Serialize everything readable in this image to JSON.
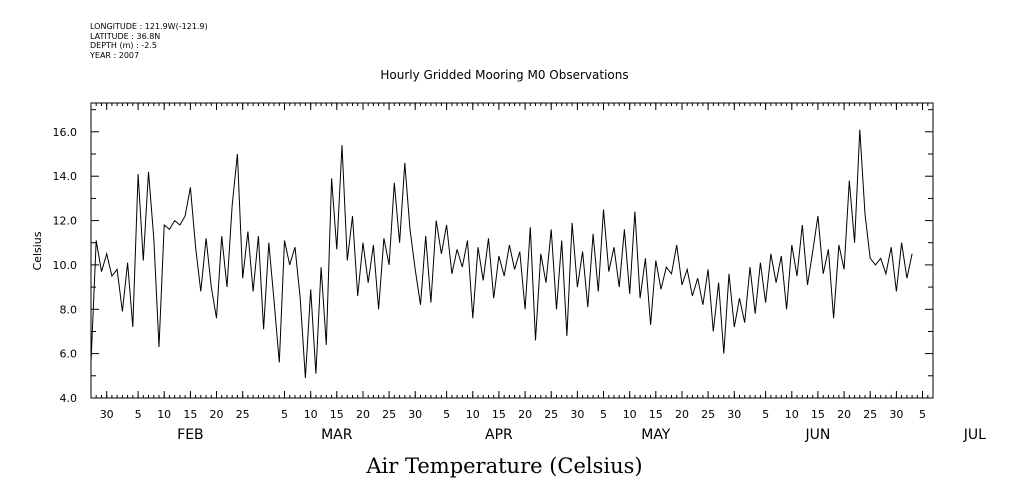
{
  "header": {
    "longitude": "LONGITUDE : 121.9W(-121.9)",
    "latitude": "LATITUDE : 36.8N",
    "depth": "DEPTH (m) : -2.5",
    "year": "YEAR : 2007"
  },
  "chart_data": {
    "type": "line",
    "title": "Hourly Gridded Mooring M0 Observations",
    "xlabel": "Air Temperature (Celsius)",
    "ylabel": "Celsius",
    "ylim": [
      4.0,
      17.3
    ],
    "xlim": [
      "2007-01-27",
      "2007-07-07"
    ],
    "y_ticks": [
      "4.0",
      "6.0",
      "8.0",
      "10.0",
      "12.0",
      "14.0",
      "16.0"
    ],
    "x_day_ticks": [
      {
        "date": "2007-01-30",
        "label": "30"
      },
      {
        "date": "2007-02-05",
        "label": "5"
      },
      {
        "date": "2007-02-10",
        "label": "10"
      },
      {
        "date": "2007-02-15",
        "label": "15"
      },
      {
        "date": "2007-02-20",
        "label": "20"
      },
      {
        "date": "2007-02-25",
        "label": "25"
      },
      {
        "date": "2007-03-05",
        "label": "5"
      },
      {
        "date": "2007-03-10",
        "label": "10"
      },
      {
        "date": "2007-03-15",
        "label": "15"
      },
      {
        "date": "2007-03-20",
        "label": "20"
      },
      {
        "date": "2007-03-25",
        "label": "25"
      },
      {
        "date": "2007-03-30",
        "label": "30"
      },
      {
        "date": "2007-04-05",
        "label": "5"
      },
      {
        "date": "2007-04-10",
        "label": "10"
      },
      {
        "date": "2007-04-15",
        "label": "15"
      },
      {
        "date": "2007-04-20",
        "label": "20"
      },
      {
        "date": "2007-04-25",
        "label": "25"
      },
      {
        "date": "2007-04-30",
        "label": "30"
      },
      {
        "date": "2007-05-05",
        "label": "5"
      },
      {
        "date": "2007-05-10",
        "label": "10"
      },
      {
        "date": "2007-05-15",
        "label": "15"
      },
      {
        "date": "2007-05-20",
        "label": "20"
      },
      {
        "date": "2007-05-25",
        "label": "25"
      },
      {
        "date": "2007-05-30",
        "label": "30"
      },
      {
        "date": "2007-06-05",
        "label": "5"
      },
      {
        "date": "2007-06-10",
        "label": "10"
      },
      {
        "date": "2007-06-15",
        "label": "15"
      },
      {
        "date": "2007-06-20",
        "label": "20"
      },
      {
        "date": "2007-06-25",
        "label": "25"
      },
      {
        "date": "2007-06-30",
        "label": "30"
      },
      {
        "date": "2007-07-05",
        "label": "5"
      }
    ],
    "x_month_ticks": [
      {
        "date": "2007-02-15",
        "label": "FEB"
      },
      {
        "date": "2007-03-15",
        "label": "MAR"
      },
      {
        "date": "2007-04-15",
        "label": "APR"
      },
      {
        "date": "2007-05-15",
        "label": "MAY"
      },
      {
        "date": "2007-06-15",
        "label": "JUN"
      },
      {
        "date": "2007-07-15",
        "label": "JUL"
      }
    ],
    "series": [
      {
        "color": "#000000",
        "points": [
          [
            "2007-01-27",
            5.6
          ],
          [
            "2007-01-28",
            11.1
          ],
          [
            "2007-01-29",
            9.7
          ],
          [
            "2007-01-30",
            10.5
          ],
          [
            "2007-01-31",
            9.5
          ],
          [
            "2007-02-01",
            9.8
          ],
          [
            "2007-02-02",
            7.9
          ],
          [
            "2007-02-03",
            10.1
          ],
          [
            "2007-02-04",
            7.2
          ],
          [
            "2007-02-05",
            14.1
          ],
          [
            "2007-02-06",
            10.2
          ],
          [
            "2007-02-07",
            14.2
          ],
          [
            "2007-02-08",
            11.2
          ],
          [
            "2007-02-09",
            6.3
          ],
          [
            "2007-02-10",
            11.8
          ],
          [
            "2007-02-11",
            11.6
          ],
          [
            "2007-02-12",
            12.0
          ],
          [
            "2007-02-13",
            11.8
          ],
          [
            "2007-02-14",
            12.2
          ],
          [
            "2007-02-15",
            13.5
          ],
          [
            "2007-02-16",
            10.8
          ],
          [
            "2007-02-17",
            8.8
          ],
          [
            "2007-02-18",
            11.2
          ],
          [
            "2007-02-19",
            9.0
          ],
          [
            "2007-02-20",
            7.6
          ],
          [
            "2007-02-21",
            11.3
          ],
          [
            "2007-02-22",
            9.0
          ],
          [
            "2007-02-23",
            12.7
          ],
          [
            "2007-02-24",
            15.0
          ],
          [
            "2007-02-25",
            9.4
          ],
          [
            "2007-02-26",
            11.5
          ],
          [
            "2007-02-27",
            8.8
          ],
          [
            "2007-02-28",
            11.3
          ],
          [
            "2007-03-01",
            7.1
          ],
          [
            "2007-03-02",
            11.0
          ],
          [
            "2007-03-03",
            8.4
          ],
          [
            "2007-03-04",
            5.6
          ],
          [
            "2007-03-05",
            11.1
          ],
          [
            "2007-03-06",
            10.0
          ],
          [
            "2007-03-07",
            10.8
          ],
          [
            "2007-03-08",
            8.5
          ],
          [
            "2007-03-09",
            4.9
          ],
          [
            "2007-03-10",
            8.9
          ],
          [
            "2007-03-11",
            5.1
          ],
          [
            "2007-03-12",
            9.9
          ],
          [
            "2007-03-13",
            6.4
          ],
          [
            "2007-03-14",
            13.9
          ],
          [
            "2007-03-15",
            10.7
          ],
          [
            "2007-03-16",
            15.4
          ],
          [
            "2007-03-17",
            10.2
          ],
          [
            "2007-03-18",
            12.2
          ],
          [
            "2007-03-19",
            8.6
          ],
          [
            "2007-03-20",
            11.0
          ],
          [
            "2007-03-21",
            9.2
          ],
          [
            "2007-03-22",
            10.9
          ],
          [
            "2007-03-23",
            8.0
          ],
          [
            "2007-03-24",
            11.2
          ],
          [
            "2007-03-25",
            10.0
          ],
          [
            "2007-03-26",
            13.7
          ],
          [
            "2007-03-27",
            11.0
          ],
          [
            "2007-03-28",
            14.6
          ],
          [
            "2007-03-29",
            11.6
          ],
          [
            "2007-03-30",
            9.8
          ],
          [
            "2007-03-31",
            8.2
          ],
          [
            "2007-04-01",
            11.3
          ],
          [
            "2007-04-02",
            8.3
          ],
          [
            "2007-04-03",
            12.0
          ],
          [
            "2007-04-04",
            10.5
          ],
          [
            "2007-04-05",
            11.8
          ],
          [
            "2007-04-06",
            9.6
          ],
          [
            "2007-04-07",
            10.7
          ],
          [
            "2007-04-08",
            9.9
          ],
          [
            "2007-04-09",
            11.1
          ],
          [
            "2007-04-10",
            7.6
          ],
          [
            "2007-04-11",
            10.8
          ],
          [
            "2007-04-12",
            9.3
          ],
          [
            "2007-04-13",
            11.2
          ],
          [
            "2007-04-14",
            8.5
          ],
          [
            "2007-04-15",
            10.4
          ],
          [
            "2007-04-16",
            9.5
          ],
          [
            "2007-04-17",
            10.9
          ],
          [
            "2007-04-18",
            9.8
          ],
          [
            "2007-04-19",
            10.6
          ],
          [
            "2007-04-20",
            8.0
          ],
          [
            "2007-04-21",
            11.7
          ],
          [
            "2007-04-22",
            6.6
          ],
          [
            "2007-04-23",
            10.5
          ],
          [
            "2007-04-24",
            9.2
          ],
          [
            "2007-04-25",
            11.6
          ],
          [
            "2007-04-26",
            8.0
          ],
          [
            "2007-04-27",
            11.1
          ],
          [
            "2007-04-28",
            6.8
          ],
          [
            "2007-04-29",
            11.9
          ],
          [
            "2007-04-30",
            9.0
          ],
          [
            "2007-05-01",
            10.6
          ],
          [
            "2007-05-02",
            8.1
          ],
          [
            "2007-05-03",
            11.4
          ],
          [
            "2007-05-04",
            8.8
          ],
          [
            "2007-05-05",
            12.5
          ],
          [
            "2007-05-06",
            9.7
          ],
          [
            "2007-05-07",
            10.8
          ],
          [
            "2007-05-08",
            9.0
          ],
          [
            "2007-05-09",
            11.6
          ],
          [
            "2007-05-10",
            8.7
          ],
          [
            "2007-05-11",
            12.4
          ],
          [
            "2007-05-12",
            8.5
          ],
          [
            "2007-05-13",
            10.3
          ],
          [
            "2007-05-14",
            7.3
          ],
          [
            "2007-05-15",
            10.2
          ],
          [
            "2007-05-16",
            8.9
          ],
          [
            "2007-05-17",
            9.9
          ],
          [
            "2007-05-18",
            9.6
          ],
          [
            "2007-05-19",
            10.9
          ],
          [
            "2007-05-20",
            9.1
          ],
          [
            "2007-05-21",
            9.8
          ],
          [
            "2007-05-22",
            8.6
          ],
          [
            "2007-05-23",
            9.4
          ],
          [
            "2007-05-24",
            8.2
          ],
          [
            "2007-05-25",
            9.8
          ],
          [
            "2007-05-26",
            7.0
          ],
          [
            "2007-05-27",
            9.2
          ],
          [
            "2007-05-28",
            6.0
          ],
          [
            "2007-05-29",
            9.6
          ],
          [
            "2007-05-30",
            7.2
          ],
          [
            "2007-05-31",
            8.5
          ],
          [
            "2007-06-01",
            7.4
          ],
          [
            "2007-06-02",
            9.9
          ],
          [
            "2007-06-03",
            7.8
          ],
          [
            "2007-06-04",
            10.1
          ],
          [
            "2007-06-05",
            8.3
          ],
          [
            "2007-06-06",
            10.5
          ],
          [
            "2007-06-07",
            9.2
          ],
          [
            "2007-06-08",
            10.4
          ],
          [
            "2007-06-09",
            8.0
          ],
          [
            "2007-06-10",
            10.9
          ],
          [
            "2007-06-11",
            9.5
          ],
          [
            "2007-06-12",
            11.8
          ],
          [
            "2007-06-13",
            9.1
          ],
          [
            "2007-06-14",
            10.6
          ],
          [
            "2007-06-15",
            12.2
          ],
          [
            "2007-06-16",
            9.6
          ],
          [
            "2007-06-17",
            10.7
          ],
          [
            "2007-06-18",
            7.6
          ],
          [
            "2007-06-19",
            10.9
          ],
          [
            "2007-06-20",
            9.8
          ],
          [
            "2007-06-21",
            13.8
          ],
          [
            "2007-06-22",
            11.0
          ],
          [
            "2007-06-23",
            16.1
          ],
          [
            "2007-06-24",
            12.3
          ],
          [
            "2007-06-25",
            10.3
          ],
          [
            "2007-06-26",
            10.0
          ],
          [
            "2007-06-27",
            10.3
          ],
          [
            "2007-06-28",
            9.6
          ],
          [
            "2007-06-29",
            10.8
          ],
          [
            "2007-06-30",
            8.8
          ],
          [
            "2007-07-01",
            11.0
          ],
          [
            "2007-07-02",
            9.4
          ],
          [
            "2007-07-03",
            10.5
          ]
        ]
      }
    ]
  }
}
